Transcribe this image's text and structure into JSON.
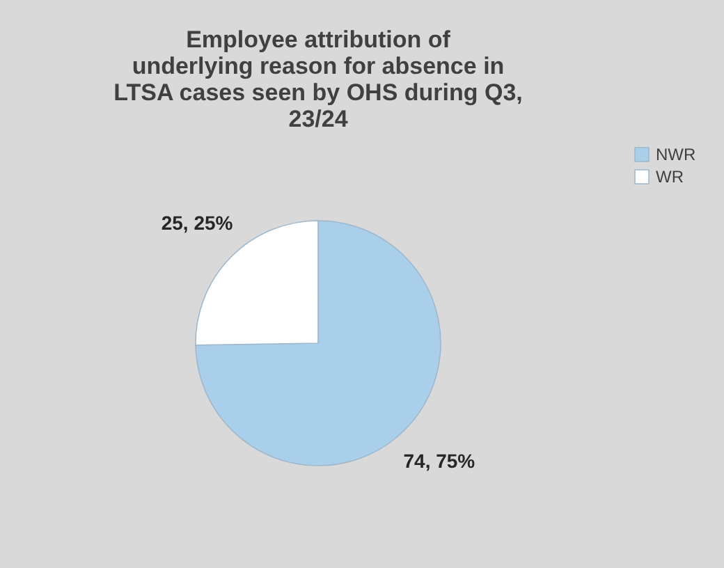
{
  "chart_data": {
    "type": "pie",
    "title": "Employee attribution of underlying reason for absence in LTSA cases seen by OHS during Q3, 23/24",
    "categories": [
      "NWR",
      "WR"
    ],
    "values": [
      74,
      25
    ],
    "colors": [
      "#a9cfea",
      "#ffffff"
    ],
    "value_labels": [
      "74, 75%",
      "25, 25%"
    ],
    "legend": "right"
  }
}
